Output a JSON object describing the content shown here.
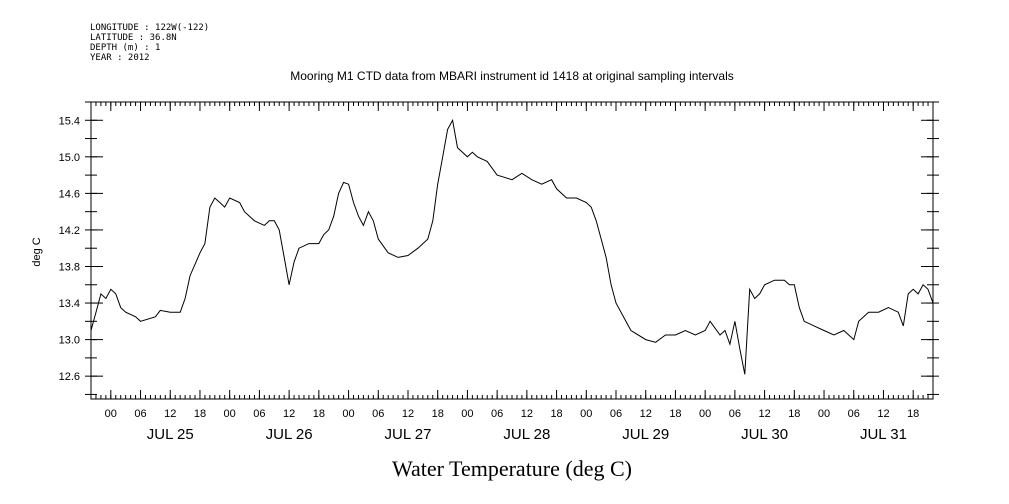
{
  "header": {
    "longitude": "LONGITUDE : 122W(-122)",
    "latitude": "LATITUDE : 36.8N",
    "depth": "DEPTH (m) : 1",
    "year": "YEAR : 2012"
  },
  "chart_data": {
    "type": "line",
    "title": "Mooring M1 CTD data from MBARI instrument id 1418 at original sampling intervals",
    "ylabel": "deg C",
    "xlabel": "Water Temperature (deg C)",
    "ylim": [
      12.35,
      15.6
    ],
    "y_ticks": [
      12.6,
      13.0,
      13.4,
      13.8,
      14.2,
      14.6,
      15.0,
      15.4
    ],
    "y_tick_labels": [
      "12.6",
      "13.0",
      "13.4",
      "13.8",
      "14.2",
      "14.6",
      "15.0",
      "15.4"
    ],
    "xlim": [
      "2012-07-24T20:00",
      "2012-07-31T22:00"
    ],
    "hour_tick_labels": [
      "00",
      "06",
      "12",
      "18",
      "00",
      "06",
      "12",
      "18",
      "00",
      "06",
      "12",
      "18",
      "00",
      "06",
      "12",
      "18",
      "00",
      "06",
      "12",
      "18",
      "00",
      "06",
      "12",
      "18",
      "00",
      "06",
      "12",
      "18"
    ],
    "hour_tick_times": [
      "2012-07-25T00:00",
      "2012-07-25T06:00",
      "2012-07-25T12:00",
      "2012-07-25T18:00",
      "2012-07-26T00:00",
      "2012-07-26T06:00",
      "2012-07-26T12:00",
      "2012-07-26T18:00",
      "2012-07-27T00:00",
      "2012-07-27T06:00",
      "2012-07-27T12:00",
      "2012-07-27T18:00",
      "2012-07-28T00:00",
      "2012-07-28T06:00",
      "2012-07-28T12:00",
      "2012-07-28T18:00",
      "2012-07-29T00:00",
      "2012-07-29T06:00",
      "2012-07-29T12:00",
      "2012-07-29T18:00",
      "2012-07-30T00:00",
      "2012-07-30T06:00",
      "2012-07-30T12:00",
      "2012-07-30T18:00",
      "2012-07-31T00:00",
      "2012-07-31T06:00",
      "2012-07-31T12:00",
      "2012-07-31T18:00"
    ],
    "day_labels": [
      "JUL 25",
      "JUL 26",
      "JUL 27",
      "JUL 28",
      "JUL 29",
      "JUL 30",
      "JUL 31"
    ],
    "day_label_times": [
      "2012-07-25T12:00",
      "2012-07-26T12:00",
      "2012-07-27T12:00",
      "2012-07-28T12:00",
      "2012-07-29T12:00",
      "2012-07-30T12:00",
      "2012-07-31T12:00"
    ],
    "grid": false,
    "series": [
      {
        "color": "#000000",
        "points": [
          [
            "2012-07-24T20:00",
            13.1
          ],
          [
            "2012-07-24T21:00",
            13.3
          ],
          [
            "2012-07-24T22:00",
            13.5
          ],
          [
            "2012-07-24T23:00",
            13.45
          ],
          [
            "2012-07-25T00:00",
            13.55
          ],
          [
            "2012-07-25T01:00",
            13.5
          ],
          [
            "2012-07-25T02:00",
            13.35
          ],
          [
            "2012-07-25T03:00",
            13.3
          ],
          [
            "2012-07-25T05:00",
            13.25
          ],
          [
            "2012-07-25T06:00",
            13.2
          ],
          [
            "2012-07-25T09:00",
            13.25
          ],
          [
            "2012-07-25T10:00",
            13.32
          ],
          [
            "2012-07-25T12:00",
            13.3
          ],
          [
            "2012-07-25T14:00",
            13.3
          ],
          [
            "2012-07-25T15:00",
            13.45
          ],
          [
            "2012-07-25T16:00",
            13.7
          ],
          [
            "2012-07-25T18:00",
            13.95
          ],
          [
            "2012-07-25T19:00",
            14.05
          ],
          [
            "2012-07-25T20:00",
            14.45
          ],
          [
            "2012-07-25T21:00",
            14.55
          ],
          [
            "2012-07-25T22:00",
            14.5
          ],
          [
            "2012-07-25T23:00",
            14.45
          ],
          [
            "2012-07-26T00:00",
            14.55
          ],
          [
            "2012-07-26T02:00",
            14.5
          ],
          [
            "2012-07-26T03:00",
            14.4
          ],
          [
            "2012-07-26T05:00",
            14.3
          ],
          [
            "2012-07-26T07:00",
            14.25
          ],
          [
            "2012-07-26T08:00",
            14.3
          ],
          [
            "2012-07-26T09:00",
            14.3
          ],
          [
            "2012-07-26T10:00",
            14.2
          ],
          [
            "2012-07-26T11:00",
            13.9
          ],
          [
            "2012-07-26T12:00",
            13.6
          ],
          [
            "2012-07-26T13:00",
            13.85
          ],
          [
            "2012-07-26T14:00",
            14.0
          ],
          [
            "2012-07-26T16:00",
            14.05
          ],
          [
            "2012-07-26T18:00",
            14.05
          ],
          [
            "2012-07-26T19:00",
            14.15
          ],
          [
            "2012-07-26T20:00",
            14.2
          ],
          [
            "2012-07-26T21:00",
            14.35
          ],
          [
            "2012-07-26T22:00",
            14.6
          ],
          [
            "2012-07-26T23:00",
            14.72
          ],
          [
            "2012-07-27T00:00",
            14.7
          ],
          [
            "2012-07-27T01:00",
            14.5
          ],
          [
            "2012-07-27T02:00",
            14.35
          ],
          [
            "2012-07-27T03:00",
            14.25
          ],
          [
            "2012-07-27T04:00",
            14.4
          ],
          [
            "2012-07-27T05:00",
            14.3
          ],
          [
            "2012-07-27T06:00",
            14.1
          ],
          [
            "2012-07-27T08:00",
            13.95
          ],
          [
            "2012-07-27T10:00",
            13.9
          ],
          [
            "2012-07-27T12:00",
            13.92
          ],
          [
            "2012-07-27T14:00",
            14.0
          ],
          [
            "2012-07-27T16:00",
            14.1
          ],
          [
            "2012-07-27T17:00",
            14.3
          ],
          [
            "2012-07-27T18:00",
            14.7
          ],
          [
            "2012-07-27T19:00",
            15.0
          ],
          [
            "2012-07-27T20:00",
            15.3
          ],
          [
            "2012-07-27T21:00",
            15.4
          ],
          [
            "2012-07-27T22:00",
            15.1
          ],
          [
            "2012-07-28T00:00",
            15.0
          ],
          [
            "2012-07-28T01:00",
            15.05
          ],
          [
            "2012-07-28T02:00",
            15.0
          ],
          [
            "2012-07-28T04:00",
            14.95
          ],
          [
            "2012-07-28T06:00",
            14.8
          ],
          [
            "2012-07-28T09:00",
            14.75
          ],
          [
            "2012-07-28T11:00",
            14.82
          ],
          [
            "2012-07-28T13:00",
            14.75
          ],
          [
            "2012-07-28T15:00",
            14.7
          ],
          [
            "2012-07-28T17:00",
            14.75
          ],
          [
            "2012-07-28T18:00",
            14.65
          ],
          [
            "2012-07-28T20:00",
            14.55
          ],
          [
            "2012-07-28T22:00",
            14.55
          ],
          [
            "2012-07-29T00:00",
            14.5
          ],
          [
            "2012-07-29T01:00",
            14.45
          ],
          [
            "2012-07-29T02:00",
            14.3
          ],
          [
            "2012-07-29T03:00",
            14.1
          ],
          [
            "2012-07-29T04:00",
            13.9
          ],
          [
            "2012-07-29T05:00",
            13.6
          ],
          [
            "2012-07-29T06:00",
            13.4
          ],
          [
            "2012-07-29T08:00",
            13.2
          ],
          [
            "2012-07-29T09:00",
            13.1
          ],
          [
            "2012-07-29T12:00",
            13.0
          ],
          [
            "2012-07-29T14:00",
            12.97
          ],
          [
            "2012-07-29T16:00",
            13.05
          ],
          [
            "2012-07-29T18:00",
            13.05
          ],
          [
            "2012-07-29T20:00",
            13.1
          ],
          [
            "2012-07-29T22:00",
            13.05
          ],
          [
            "2012-07-30T00:00",
            13.1
          ],
          [
            "2012-07-30T01:00",
            13.2
          ],
          [
            "2012-07-30T03:00",
            13.05
          ],
          [
            "2012-07-30T04:00",
            13.1
          ],
          [
            "2012-07-30T05:00",
            12.95
          ],
          [
            "2012-07-30T06:00",
            13.2
          ],
          [
            "2012-07-30T07:00",
            12.9
          ],
          [
            "2012-07-30T08:00",
            12.62
          ],
          [
            "2012-07-30T09:00",
            13.55
          ],
          [
            "2012-07-30T10:00",
            13.45
          ],
          [
            "2012-07-30T11:00",
            13.5
          ],
          [
            "2012-07-30T12:00",
            13.6
          ],
          [
            "2012-07-30T14:00",
            13.65
          ],
          [
            "2012-07-30T16:00",
            13.65
          ],
          [
            "2012-07-30T17:00",
            13.6
          ],
          [
            "2012-07-30T18:00",
            13.6
          ],
          [
            "2012-07-30T19:00",
            13.35
          ],
          [
            "2012-07-30T20:00",
            13.2
          ],
          [
            "2012-07-30T22:00",
            13.15
          ],
          [
            "2012-07-31T00:00",
            13.1
          ],
          [
            "2012-07-31T02:00",
            13.05
          ],
          [
            "2012-07-31T04:00",
            13.1
          ],
          [
            "2012-07-31T06:00",
            13.0
          ],
          [
            "2012-07-31T07:00",
            13.2
          ],
          [
            "2012-07-31T09:00",
            13.3
          ],
          [
            "2012-07-31T11:00",
            13.3
          ],
          [
            "2012-07-31T13:00",
            13.35
          ],
          [
            "2012-07-31T15:00",
            13.3
          ],
          [
            "2012-07-31T16:00",
            13.15
          ],
          [
            "2012-07-31T17:00",
            13.5
          ],
          [
            "2012-07-31T18:00",
            13.55
          ],
          [
            "2012-07-31T19:00",
            13.5
          ],
          [
            "2012-07-31T20:00",
            13.6
          ],
          [
            "2012-07-31T21:00",
            13.55
          ],
          [
            "2012-07-31T22:00",
            13.4
          ]
        ]
      }
    ]
  }
}
